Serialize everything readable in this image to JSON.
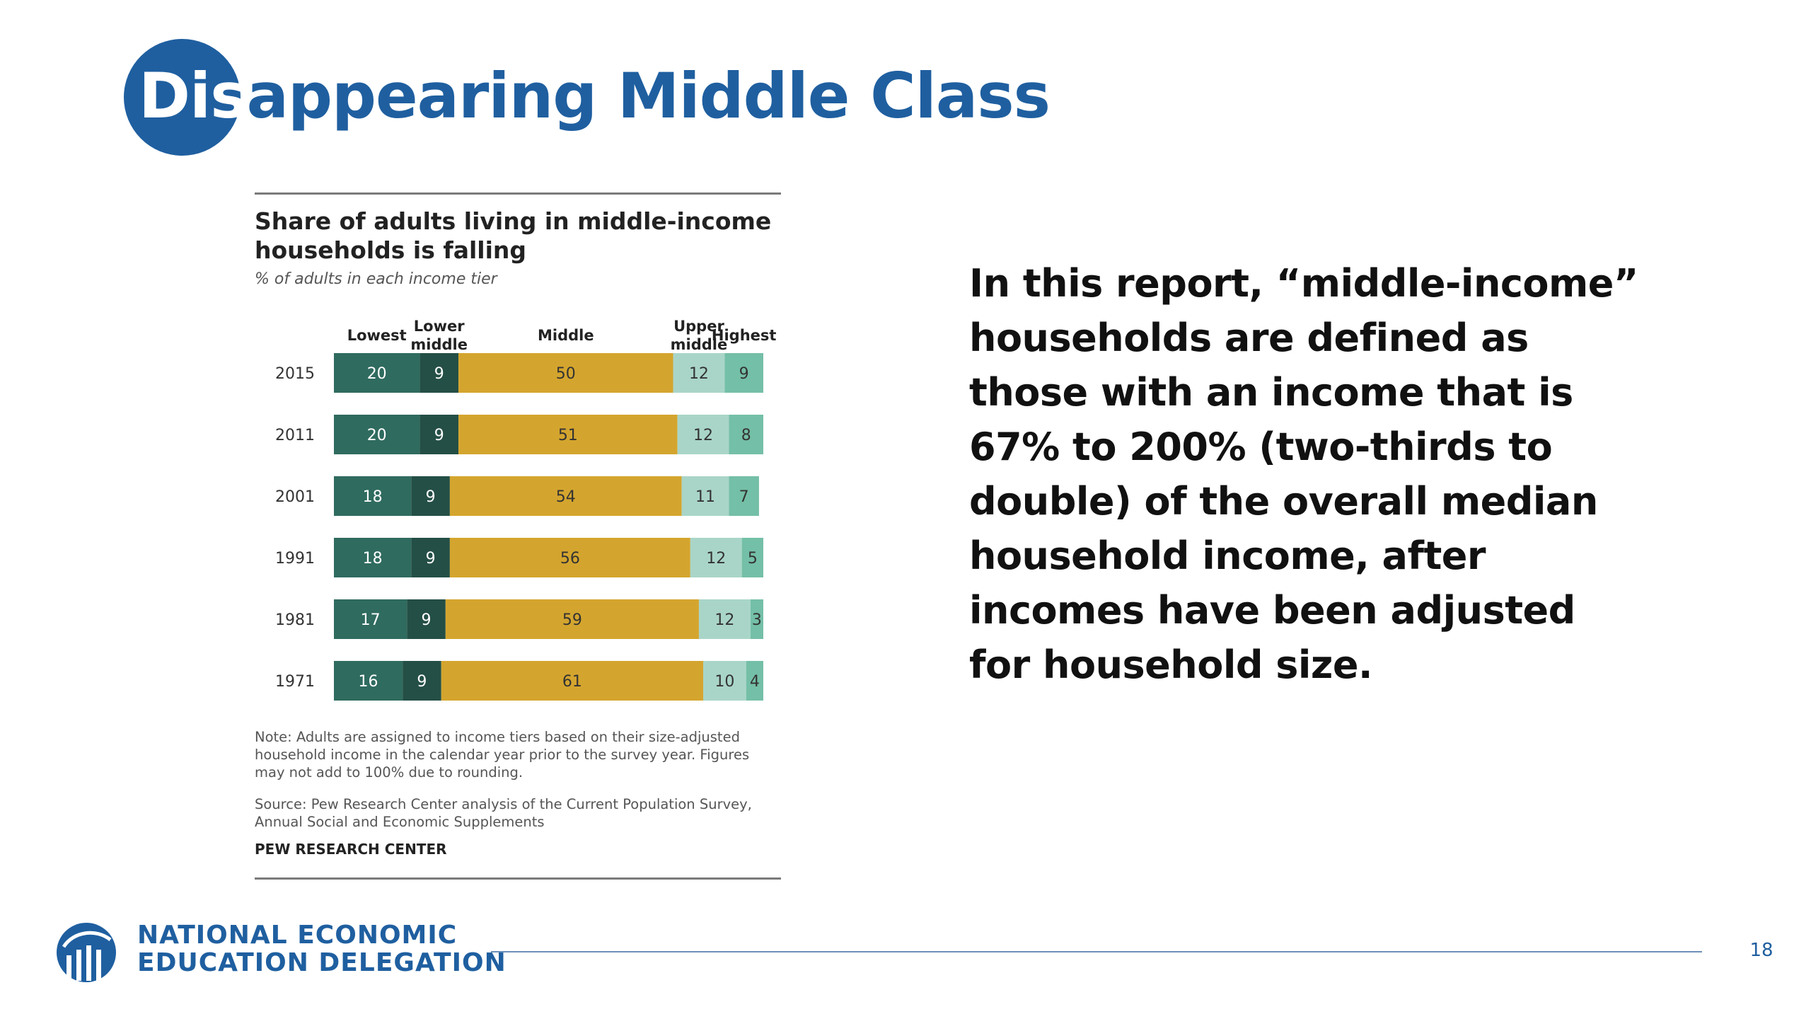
{
  "slide": {
    "title_lead": "Dis",
    "title_rest": "appearing Middle Class",
    "definition": "In this report, “middle-income” households are defined as those with an income that is 67% to 200% (two-thirds to double) of the overall median household income, after incomes have been adjusted for household size.",
    "page_number": "18",
    "accent_color": "#1f5fa0"
  },
  "footer": {
    "org_line1": "NATIONAL ECONOMIC",
    "org_line2": "EDUCATION DELEGATION",
    "logo_icon": "building-columns-in-circle"
  },
  "chart_data": {
    "type": "bar",
    "orientation": "horizontal",
    "stacked": true,
    "title": "Share of adults living in middle-income households is falling",
    "subtitle": "% of adults in each income tier",
    "categories": [
      "2015",
      "2011",
      "2001",
      "1991",
      "1981",
      "1971"
    ],
    "series": [
      {
        "name": "Lowest",
        "header": [
          "Lowest"
        ],
        "color": "#2f6b5f",
        "values": [
          20,
          20,
          18,
          18,
          17,
          16
        ]
      },
      {
        "name": "Lower middle",
        "header": [
          "Lower",
          "middle"
        ],
        "color": "#244f46",
        "values": [
          9,
          9,
          9,
          9,
          9,
          9
        ]
      },
      {
        "name": "Middle",
        "header": [
          "Middle"
        ],
        "color": "#d4a52e",
        "values": [
          50,
          51,
          54,
          56,
          59,
          61
        ]
      },
      {
        "name": "Upper middle",
        "header": [
          "Upper",
          "middle"
        ],
        "color": "#a9d5c8",
        "values": [
          12,
          12,
          11,
          12,
          12,
          10
        ]
      },
      {
        "name": "Highest",
        "header": [
          "Highest"
        ],
        "color": "#74bfa7",
        "values": [
          9,
          8,
          7,
          5,
          3,
          4
        ]
      }
    ],
    "legend_position": "top",
    "grid": false,
    "note": "Note: Adults are assigned to income tiers based on their size-adjusted household income in the calendar year prior to the survey year. Figures may not add to 100% due to rounding.",
    "source": "Source: Pew Research Center analysis of the Current Population Survey, Annual Social and Economic Supplements",
    "credit": "PEW RESEARCH CENTER"
  }
}
